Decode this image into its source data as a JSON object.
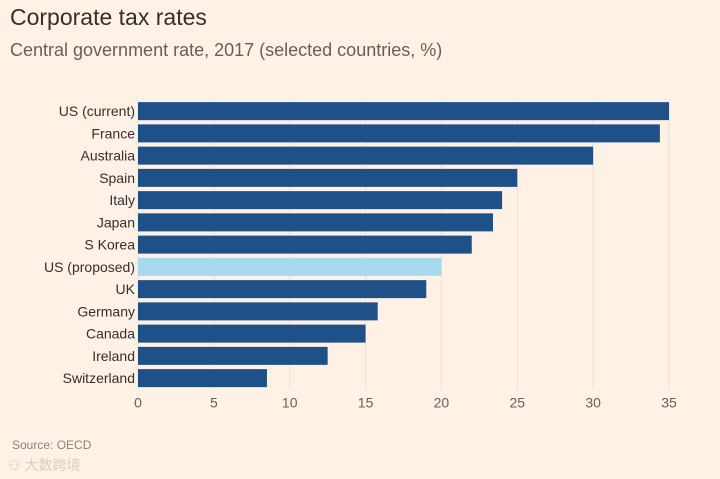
{
  "chart_data": {
    "type": "bar",
    "orientation": "horizontal",
    "title": "Corporate tax rates",
    "subtitle": "Central government rate, 2017 (selected countries, %)",
    "categories": [
      "US (current)",
      "France",
      "Australia",
      "Spain",
      "Italy",
      "Japan",
      "S Korea",
      "US (proposed)",
      "UK",
      "Germany",
      "Canada",
      "Ireland",
      "Switzerland"
    ],
    "values": [
      35,
      34.4,
      30,
      25,
      24,
      23.4,
      22,
      20,
      19,
      15.8,
      15,
      12.5,
      8.5
    ],
    "highlight": "US (proposed)",
    "xlim": [
      0,
      35
    ],
    "xticks": [
      0,
      5,
      10,
      15,
      20,
      25,
      30,
      35
    ],
    "xlabel": "",
    "ylabel": "",
    "grid": true,
    "source": "Source: OECD"
  },
  "colors": {
    "bar": "#1f5189",
    "highlight": "#a9d9ec",
    "background": "#fff1e5",
    "grid": "#eadfd6"
  },
  "watermark": "大数跨境"
}
